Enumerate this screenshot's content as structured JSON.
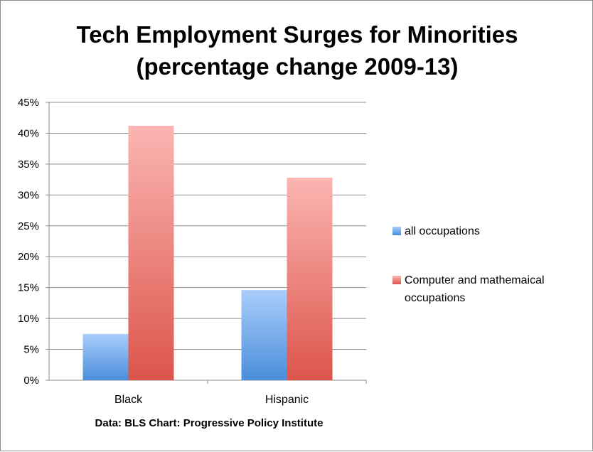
{
  "chart_data": {
    "type": "bar",
    "title_lines": [
      "Tech Employment Surges for Minorities",
      "(percentage change 2009-13)"
    ],
    "categories": [
      "Black",
      "Hispanic"
    ],
    "series": [
      {
        "name": "all occupations",
        "values": [
          7.5,
          14.6
        ],
        "color_top": "#aacdfa",
        "color_bottom": "#4a8edb"
      },
      {
        "name": "Computer and mathemaical occupations",
        "legend_lines": [
          "Computer and mathemaical",
          "occupations"
        ],
        "values": [
          41.2,
          32.8
        ],
        "color_top": "#fbb5b2",
        "color_bottom": "#dc554b"
      }
    ],
    "ylim": [
      0,
      45
    ],
    "yticks": [
      0,
      5,
      10,
      15,
      20,
      25,
      30,
      35,
      40,
      45
    ],
    "ytick_labels": [
      "0%",
      "5%",
      "10%",
      "15%",
      "20%",
      "25%",
      "30%",
      "35%",
      "40%",
      "45%"
    ],
    "grid": true,
    "legend_position": "right",
    "source_note": "Data: BLS   Chart: Progressive Policy Institute"
  }
}
